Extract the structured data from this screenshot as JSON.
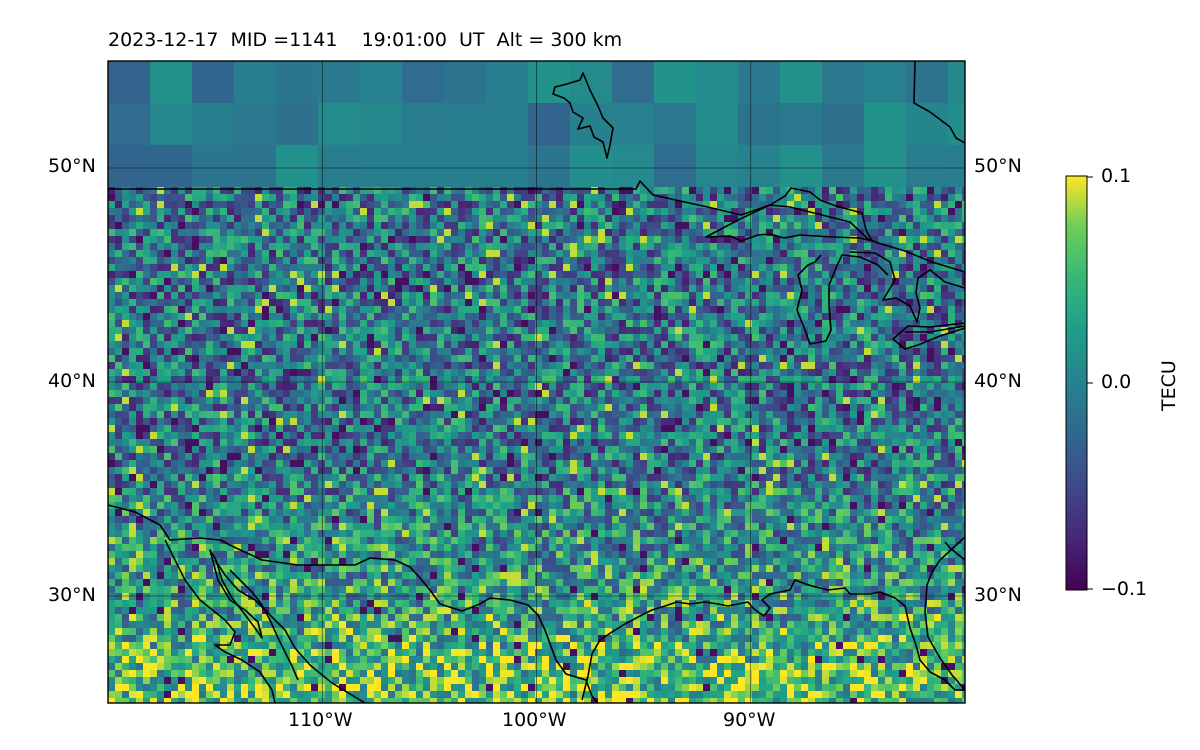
{
  "title": "2023-12-17  MID =1141    19:01:00  UT  Alt = 300 km",
  "map": {
    "lon_range": [
      -120,
      -80
    ],
    "lat_range": [
      25,
      55
    ],
    "gridlines": {
      "lons": [
        -110,
        -100,
        -90
      ],
      "lats": [
        30,
        40,
        50
      ]
    },
    "lon_tick_labels": [
      "110°W",
      "100°W",
      "90°W"
    ],
    "lat_tick_labels": [
      "50°N",
      "40°N",
      "30°N"
    ]
  },
  "colorbar": {
    "label": "TECU",
    "colormap": "viridis",
    "min_label": "−0.1",
    "mid_label": "0.0",
    "max_label": "0.1",
    "vmin": -0.1,
    "vmax": 0.1
  },
  "colors": {
    "viridis_low": "#440154",
    "viridis_mid": "#21918c",
    "viridis_high": "#fde725",
    "coastline": "#000000"
  }
}
